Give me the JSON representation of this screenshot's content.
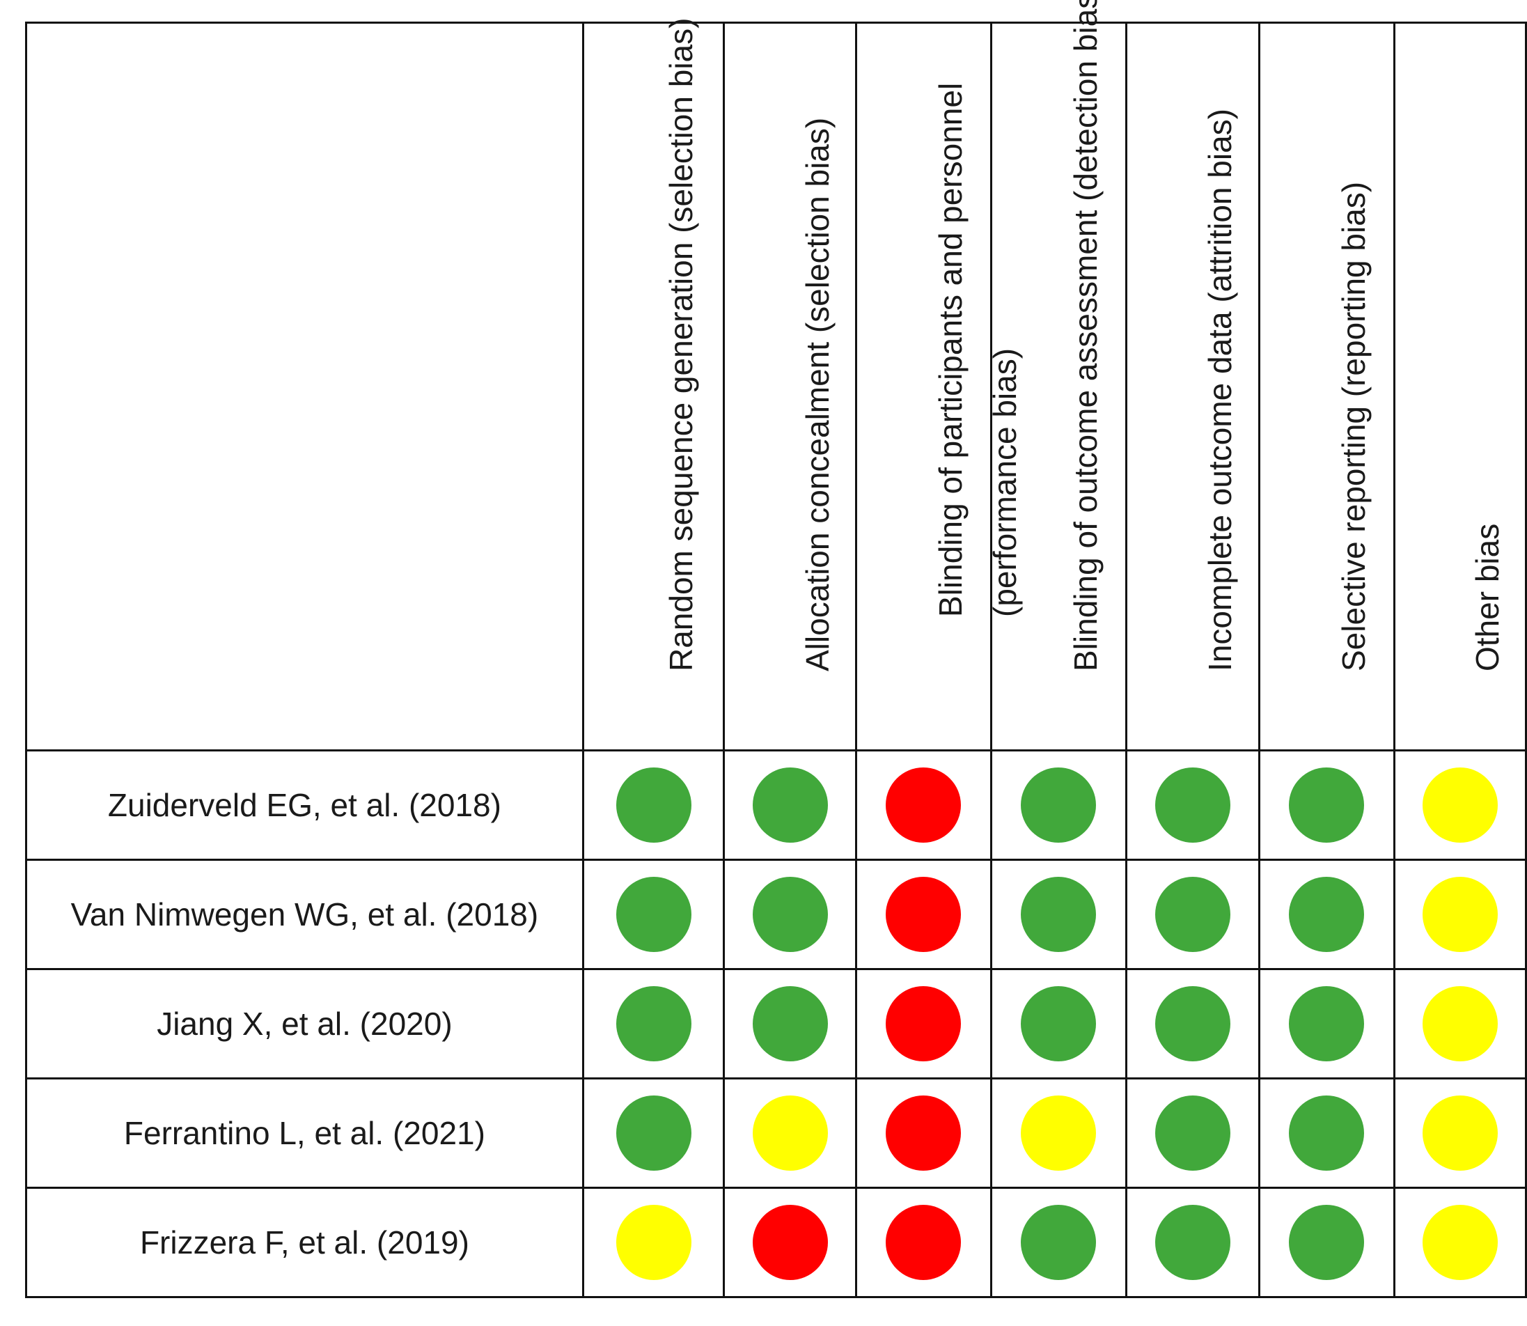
{
  "domains": [
    "Random sequence generation (selection bias)",
    "Allocation concealment (selection bias)",
    "Blinding of participants and personnel (performance bias)",
    "Blinding of outcome assessment (detection bias)",
    "Incomplete outcome data (attrition bias)",
    "Selective reporting (reporting bias)",
    "Other bias"
  ],
  "colors": {
    "low": "#41a83b",
    "high": "#ff0000",
    "unclear": "#ffff00"
  },
  "studies": [
    {
      "name": "Zuiderveld EG, et al. (2018)",
      "judgements": [
        "low",
        "low",
        "high",
        "low",
        "low",
        "low",
        "unclear"
      ]
    },
    {
      "name": "Van Nimwegen WG, et al. (2018)",
      "judgements": [
        "low",
        "low",
        "high",
        "low",
        "low",
        "low",
        "unclear"
      ]
    },
    {
      "name": "Jiang X, et al. (2020)",
      "judgements": [
        "low",
        "low",
        "high",
        "low",
        "low",
        "low",
        "unclear"
      ]
    },
    {
      "name": "Ferrantino L, et al. (2021)",
      "judgements": [
        "low",
        "unclear",
        "high",
        "unclear",
        "low",
        "low",
        "unclear"
      ]
    },
    {
      "name": "Frizzera F, et al. (2019)",
      "judgements": [
        "unclear",
        "high",
        "high",
        "low",
        "low",
        "low",
        "unclear"
      ]
    }
  ]
}
